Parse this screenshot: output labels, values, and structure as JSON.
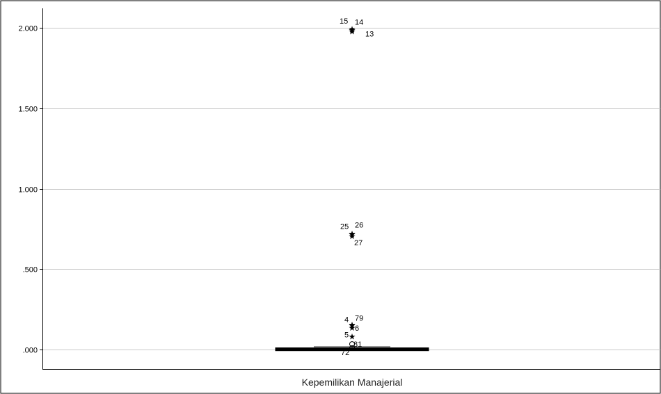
{
  "chart_data": {
    "type": "boxplot",
    "category": "Kepemilikan Manajerial",
    "ylim": [
      -0.12,
      2.12
    ],
    "yticks": [
      {
        "value": 0.0,
        "label": ".000"
      },
      {
        "value": 0.5,
        "label": ".500"
      },
      {
        "value": 1.0,
        "label": "1.000"
      },
      {
        "value": 1.5,
        "label": "1.500"
      },
      {
        "value": 2.0,
        "label": "2.000"
      }
    ],
    "grid": true,
    "box": {
      "min": 0.0,
      "q1": 0.0,
      "median": 0.0,
      "q3": 0.005,
      "max": 0.018
    },
    "colors": {
      "box": "#000000",
      "grid": "#c8c8c8"
    },
    "outliers": [
      {
        "label": "15",
        "value": 1.99,
        "marker": "star"
      },
      {
        "label": "14",
        "value": 1.985,
        "marker": "star"
      },
      {
        "label": "13",
        "value": 1.975,
        "marker": "star"
      },
      {
        "label": "25",
        "value": 0.715,
        "marker": "star"
      },
      {
        "label": "26",
        "value": 0.72,
        "marker": "star"
      },
      {
        "label": "27",
        "value": 0.705,
        "marker": "star"
      },
      {
        "label": "4",
        "value": 0.155,
        "marker": "star"
      },
      {
        "label": "79",
        "value": 0.15,
        "marker": "star"
      },
      {
        "label": "6",
        "value": 0.135,
        "marker": "star"
      },
      {
        "label": "5",
        "value": 0.08,
        "marker": "star"
      },
      {
        "label": "81",
        "value": 0.035,
        "marker": "circle"
      },
      {
        "label": "72",
        "value": 0.01,
        "marker": "circle"
      }
    ]
  }
}
